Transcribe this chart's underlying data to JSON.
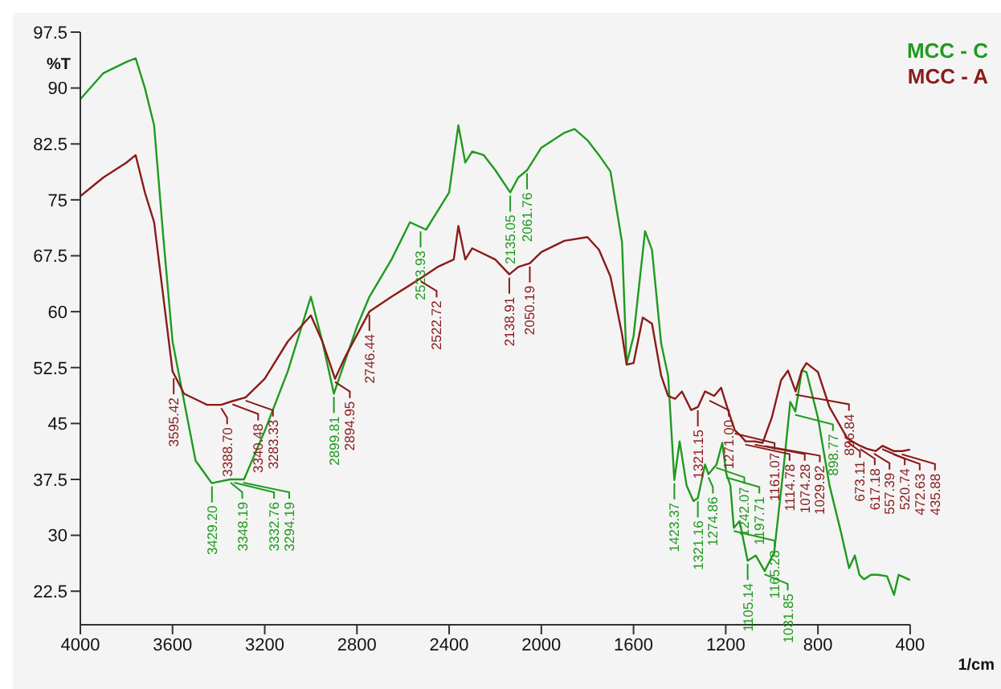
{
  "chart_data": {
    "type": "line",
    "ylabel": "%T",
    "xlabel": "1/cm",
    "xlim": [
      4000,
      400
    ],
    "xticks": [
      4000,
      3600,
      3200,
      2800,
      2400,
      2000,
      1600,
      1200,
      800,
      400
    ],
    "ylim": [
      18,
      97.5
    ],
    "yticks": [
      22.5,
      30,
      37.5,
      45,
      52.5,
      60,
      67.5,
      75,
      82.5,
      90,
      97.5
    ],
    "grid": false,
    "legend": "top right",
    "marker": "none",
    "line_style": "solid",
    "series": [
      {
        "name": "MCC - C",
        "color": "#1f9a1f",
        "x": [
          4000,
          3900,
          3800,
          3760,
          3720,
          3680,
          3640,
          3600,
          3500,
          3430,
          3350,
          3290,
          3200,
          3100,
          3000,
          2950,
          2900,
          2800,
          2746,
          2650,
          2570,
          2500,
          2400,
          2360,
          2330,
          2300,
          2250,
          2200,
          2135,
          2100,
          2061,
          2000,
          1900,
          1856,
          1800,
          1750,
          1700,
          1650,
          1630,
          1600,
          1550,
          1520,
          1500,
          1480,
          1450,
          1423,
          1400,
          1370,
          1340,
          1321,
          1290,
          1275,
          1240,
          1215,
          1197,
          1180,
          1165,
          1140,
          1105,
          1070,
          1031,
          990,
          950,
          920,
          898,
          870,
          850,
          800,
          750,
          700,
          665,
          640,
          620,
          600,
          570,
          540,
          500,
          470,
          450,
          400
        ],
        "values": [
          88.5,
          92,
          93.5,
          94,
          90,
          85,
          70,
          56,
          40,
          37,
          37.5,
          37.5,
          44,
          52,
          62,
          56,
          49,
          58,
          62,
          67,
          72,
          71,
          76,
          85,
          80,
          81.5,
          81,
          79,
          76,
          78,
          79,
          82,
          84,
          84.5,
          83,
          81,
          78.8,
          69.3,
          53,
          56.7,
          70.8,
          68.3,
          62,
          55.7,
          51.4,
          37.4,
          42.6,
          36.7,
          34.6,
          35,
          39.5,
          38.2,
          39.5,
          42.4,
          38.2,
          36.7,
          31,
          31.9,
          26.6,
          27.3,
          25.2,
          27.7,
          38.8,
          47.9,
          46.6,
          52.1,
          51.9,
          45.8,
          36.7,
          30.4,
          25.6,
          27.3,
          24.7,
          24.1,
          24.7,
          24.7,
          24.5,
          22,
          24.7,
          24
        ]
      },
      {
        "name": "MCC - A",
        "color": "#8b1a1a",
        "x": [
          4000,
          3900,
          3800,
          3760,
          3720,
          3680,
          3640,
          3600,
          3550,
          3450,
          3389,
          3340,
          3283,
          3200,
          3100,
          3000,
          2950,
          2895,
          2850,
          2746,
          2650,
          2522,
          2450,
          2380,
          2360,
          2330,
          2300,
          2200,
          2139,
          2100,
          2050,
          2000,
          1900,
          1800,
          1750,
          1700,
          1650,
          1630,
          1600,
          1560,
          1520,
          1480,
          1450,
          1420,
          1390,
          1350,
          1321,
          1290,
          1250,
          1220,
          1190,
          1161,
          1140,
          1114,
          1074,
          1040,
          1000,
          960,
          930,
          897,
          870,
          850,
          800,
          750,
          700,
          673,
          617,
          587,
          550,
          520,
          472,
          435,
          400
        ],
        "values": [
          75.5,
          78,
          80,
          81,
          76,
          72,
          62,
          52,
          49,
          47.5,
          47.5,
          48,
          48.5,
          51,
          56,
          59.5,
          56,
          51,
          54,
          60,
          62,
          64.5,
          66,
          67,
          71.5,
          67,
          68.5,
          67,
          65,
          66,
          66.5,
          68,
          69.5,
          70,
          68.3,
          64.7,
          57,
          52.9,
          53.1,
          59.2,
          58.4,
          51.4,
          48.7,
          48.3,
          49.3,
          46.8,
          47.2,
          49.3,
          48.7,
          49.8,
          46.8,
          44.1,
          43.5,
          42.6,
          42.6,
          42.4,
          45.8,
          50.8,
          52.1,
          49.3,
          52.1,
          53.1,
          51.9,
          47.2,
          44.5,
          43,
          42,
          41.6,
          41.3,
          42,
          41.3,
          41.3,
          41.5
        ]
      }
    ],
    "annotations": [
      {
        "text": "3429.20",
        "x": 3429,
        "y": 37
      },
      {
        "text": "3348.19",
        "x": 3348,
        "y": 37.5
      },
      {
        "text": "3332.76",
        "x": 3333,
        "y": 37.5
      },
      {
        "text": "3294.19",
        "x": 3294,
        "y": 37.5
      },
      {
        "text": "2899.81",
        "x": 2900,
        "y": 49
      },
      {
        "text": "2523.93",
        "x": 2524,
        "y": 71.2
      },
      {
        "text": "2135.05",
        "x": 2135,
        "y": 76
      },
      {
        "text": "2061.76",
        "x": 2062,
        "y": 79
      },
      {
        "text": "1423.37",
        "x": 1423,
        "y": 37.4
      },
      {
        "text": "1321.16",
        "x": 1321,
        "y": 35
      },
      {
        "text": "1274.86",
        "x": 1275,
        "y": 38.2
      },
      {
        "text": "1242.07",
        "x": 1242,
        "y": 39.5
      },
      {
        "text": "1197.71",
        "x": 1198,
        "y": 38.2
      },
      {
        "text": "1165.28",
        "x": 1165,
        "y": 31
      },
      {
        "text": "1105.14",
        "x": 1105,
        "y": 26.6
      },
      {
        "text": "1031.85",
        "x": 1032,
        "y": 25.2
      },
      {
        "text": "898.77",
        "x": 899,
        "y": 46.6
      },
      {
        "text": "3595.42",
        "x": 3595,
        "y": 51.5
      },
      {
        "text": "3388.70",
        "x": 3389,
        "y": 47.5
      },
      {
        "text": "3340.48",
        "x": 3340,
        "y": 48
      },
      {
        "text": "3283.33",
        "x": 3283,
        "y": 48.5
      },
      {
        "text": "2894.95",
        "x": 2895,
        "y": 51
      },
      {
        "text": "2746.44",
        "x": 2746,
        "y": 60
      },
      {
        "text": "2522.72",
        "x": 2523,
        "y": 64.5
      },
      {
        "text": "2138.91",
        "x": 2139,
        "y": 65
      },
      {
        "text": "2050.19",
        "x": 2050,
        "y": 66.5
      },
      {
        "text": "1321.15",
        "x": 1321,
        "y": 47.2
      },
      {
        "text": "1271.00",
        "x": 1271,
        "y": 48.5
      },
      {
        "text": "1161.07",
        "x": 1161,
        "y": 44.1
      },
      {
        "text": "1114.78",
        "x": 1115,
        "y": 42.6
      },
      {
        "text": "1074.28",
        "x": 1074,
        "y": 42.6
      },
      {
        "text": "1029.92",
        "x": 1030,
        "y": 42.4
      },
      {
        "text": "896.84",
        "x": 897,
        "y": 49.3
      },
      {
        "text": "673.11",
        "x": 673,
        "y": 43
      },
      {
        "text": "617.18",
        "x": 617,
        "y": 42
      },
      {
        "text": "557.39",
        "x": 557,
        "y": 41.4
      },
      {
        "text": "520.74",
        "x": 521,
        "y": 42
      },
      {
        "text": "472.63",
        "x": 473,
        "y": 41.3
      },
      {
        "text": "435.88",
        "x": 436,
        "y": 41.3
      }
    ]
  }
}
